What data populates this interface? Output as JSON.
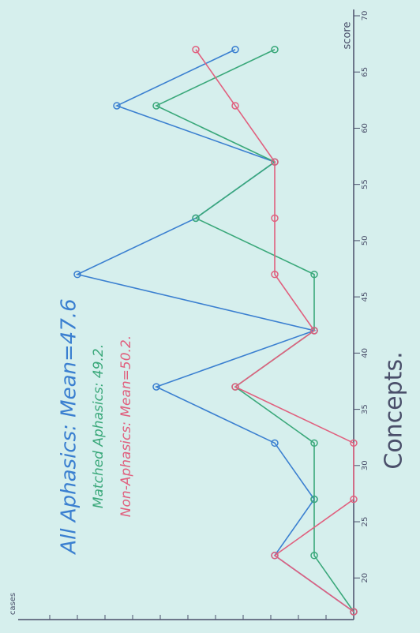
{
  "chart_data": {
    "type": "line",
    "legend_texts": [
      "All Aphasics: Mean=47.6",
      "Matched Aphasics: 49.2.",
      "Non-Aphasics: Mean=50.2."
    ],
    "x_label": "score",
    "y_label": "cases",
    "caption": "Concepts.",
    "x": [
      17,
      22,
      27,
      32,
      37,
      42,
      47,
      52,
      57,
      62,
      67
    ],
    "xlim": [
      17,
      70
    ],
    "xticks": [
      20,
      25,
      30,
      35,
      40,
      45,
      50,
      55,
      60,
      65,
      70
    ],
    "ylim": [
      0,
      8.4
    ],
    "series": [
      {
        "color": "#3a7fd0",
        "values": [
          0,
          2,
          1,
          2,
          5,
          1,
          7,
          4,
          2,
          6,
          3
        ]
      },
      {
        "color": "#3aa87a",
        "values": [
          0,
          1,
          1,
          1,
          3,
          1,
          1,
          4,
          2,
          5,
          2
        ]
      },
      {
        "color": "#e0607e",
        "values": [
          0,
          2,
          0,
          0,
          3,
          1,
          2,
          2,
          2,
          3,
          4
        ]
      }
    ]
  }
}
